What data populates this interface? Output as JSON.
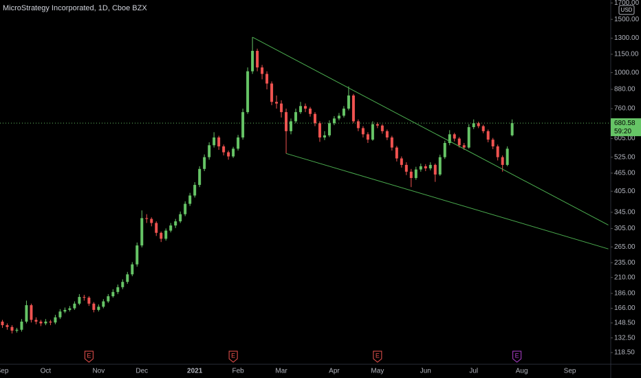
{
  "chart_data": {
    "type": "candlestick",
    "title": "MicroStrategy Incorporated, 1D, Cboe BZX",
    "currency": "USD",
    "countdown": "59:20",
    "categories": [
      "Sep",
      null,
      null,
      null,
      null,
      null,
      null,
      null,
      null,
      "Oct",
      null,
      null,
      null,
      null,
      null,
      null,
      null,
      null,
      null,
      null,
      "Nov",
      null,
      null,
      null,
      null,
      null,
      null,
      null,
      null,
      "Dec",
      null,
      null,
      null,
      null,
      null,
      null,
      null,
      null,
      null,
      null,
      "2021",
      null,
      null,
      null,
      null,
      null,
      null,
      null,
      null,
      "Feb",
      null,
      null,
      null,
      null,
      null,
      null,
      null,
      null,
      "Mar",
      null,
      null,
      null,
      null,
      null,
      null,
      null,
      null,
      null,
      null,
      "Apr",
      null,
      null,
      null,
      null,
      null,
      null,
      null,
      null,
      "May",
      null,
      null,
      null,
      null,
      null,
      null,
      null,
      null,
      null,
      "Jun",
      null,
      null,
      null,
      null,
      null,
      null,
      null,
      null,
      null,
      "Jul",
      null,
      null,
      null,
      null,
      null,
      null,
      null,
      null,
      null,
      "Aug",
      null,
      null,
      null,
      null,
      null,
      null,
      null,
      null,
      null,
      "Sep",
      null,
      null,
      null,
      null,
      null,
      null,
      null,
      null
    ],
    "open": [
      150,
      146,
      144,
      140,
      141,
      150,
      170,
      152,
      150,
      148,
      150,
      149,
      155,
      162,
      164,
      166,
      172,
      181,
      180,
      172,
      164,
      168,
      175,
      182,
      188,
      195,
      203,
      215,
      232,
      268,
      330,
      328,
      318,
      295,
      282,
      300,
      312,
      322,
      340,
      368,
      392,
      425,
      480,
      525,
      575,
      610,
      570,
      545,
      528,
      560,
      610,
      740,
      1010,
      1180,
      1040,
      990,
      920,
      800,
      790,
      740,
      640,
      690,
      740,
      775,
      760,
      730,
      680,
      610,
      620,
      680,
      705,
      720,
      760,
      840,
      690,
      655,
      625,
      600,
      675,
      668,
      640,
      610,
      565,
      520,
      495,
      470,
      448,
      478,
      490,
      482,
      495,
      460,
      525,
      585,
      625,
      605,
      575,
      565,
      660,
      680,
      665,
      640,
      600,
      570,
      525,
      495,
      620,
      null,
      null,
      null,
      null,
      null,
      null,
      null,
      null,
      null,
      null,
      null,
      null,
      null,
      null,
      null,
      null,
      null,
      null,
      null,
      null
    ],
    "high": [
      152,
      148,
      146,
      143,
      153,
      176,
      172,
      155,
      152,
      153,
      152,
      158,
      165,
      167,
      169,
      175,
      185,
      184,
      182,
      174,
      171,
      178,
      185,
      192,
      199,
      207,
      219,
      236,
      274,
      350,
      340,
      332,
      322,
      298,
      305,
      318,
      328,
      347,
      375,
      400,
      434,
      490,
      536,
      588,
      635,
      618,
      578,
      552,
      568,
      622,
      760,
      1040,
      1310,
      1200,
      1060,
      1010,
      935,
      840,
      810,
      760,
      705,
      760,
      800,
      790,
      770,
      740,
      690,
      640,
      695,
      718,
      735,
      775,
      900,
      850,
      700,
      665,
      635,
      690,
      685,
      675,
      648,
      618,
      572,
      528,
      505,
      480,
      488,
      500,
      498,
      505,
      500,
      535,
      595,
      645,
      632,
      612,
      585,
      675,
      700,
      688,
      672,
      648,
      608,
      578,
      532,
      570,
      700,
      null,
      null,
      null,
      null,
      null,
      null,
      null,
      null,
      null,
      null,
      null,
      null,
      null,
      null,
      null,
      null,
      null,
      null,
      null,
      null
    ],
    "low": [
      143,
      141,
      137,
      138,
      139,
      148,
      149,
      147,
      145,
      146,
      146,
      147,
      153,
      160,
      162,
      164,
      170,
      176,
      169,
      161,
      162,
      166,
      173,
      180,
      185,
      192,
      200,
      212,
      228,
      264,
      318,
      310,
      288,
      275,
      278,
      296,
      306,
      318,
      335,
      362,
      386,
      418,
      472,
      515,
      565,
      555,
      532,
      515,
      522,
      552,
      600,
      730,
      990,
      1010,
      950,
      880,
      780,
      760,
      710,
      540,
      625,
      680,
      730,
      740,
      715,
      665,
      590,
      598,
      612,
      670,
      695,
      710,
      750,
      680,
      640,
      610,
      585,
      595,
      655,
      628,
      598,
      552,
      508,
      485,
      458,
      418,
      442,
      470,
      472,
      475,
      435,
      455,
      518,
      575,
      592,
      565,
      555,
      560,
      650,
      655,
      630,
      588,
      558,
      512,
      470,
      490,
      615,
      null,
      null,
      null,
      null,
      null,
      null,
      null,
      null,
      null,
      null,
      null,
      null,
      null,
      null,
      null,
      null,
      null,
      null,
      null,
      null
    ],
    "close": [
      146,
      144,
      140,
      141,
      150,
      170,
      152,
      150,
      148,
      150,
      149,
      155,
      162,
      164,
      166,
      172,
      181,
      180,
      172,
      164,
      168,
      175,
      182,
      188,
      195,
      203,
      215,
      232,
      268,
      330,
      328,
      318,
      295,
      282,
      300,
      312,
      322,
      340,
      368,
      392,
      425,
      480,
      525,
      575,
      610,
      570,
      545,
      528,
      560,
      610,
      740,
      1010,
      1180,
      1040,
      990,
      920,
      800,
      790,
      740,
      640,
      690,
      740,
      775,
      760,
      730,
      680,
      610,
      620,
      680,
      705,
      720,
      760,
      840,
      690,
      655,
      625,
      600,
      675,
      668,
      640,
      610,
      565,
      520,
      495,
      470,
      448,
      478,
      490,
      482,
      495,
      460,
      525,
      585,
      625,
      605,
      575,
      565,
      660,
      680,
      665,
      640,
      600,
      570,
      525,
      495,
      560,
      680.58,
      null,
      null,
      null,
      null,
      null,
      null,
      null,
      null,
      null,
      null,
      null,
      null,
      null,
      null,
      null,
      null,
      null,
      null,
      null,
      null
    ],
    "up_color": "#66c466",
    "down_color": "#ef5350",
    "log_scale": true,
    "grid": false,
    "ylim": [
      108.4,
      1738.5
    ],
    "yticks": [
      {
        "value": 1700,
        "label": "1700.00"
      },
      {
        "value": 1500,
        "label": "1500.00"
      },
      {
        "value": 1300,
        "label": "1300.00"
      },
      {
        "value": 1150,
        "label": "1150.00"
      },
      {
        "value": 1000,
        "label": "1000.00"
      },
      {
        "value": 880,
        "label": "880.00"
      },
      {
        "value": 760,
        "label": "760.00"
      },
      {
        "value": 605,
        "label": "605.00"
      },
      {
        "value": 525,
        "label": "525.00"
      },
      {
        "value": 465,
        "label": "465.00"
      },
      {
        "value": 405,
        "label": "405.00"
      },
      {
        "value": 345,
        "label": "345.00"
      },
      {
        "value": 305,
        "label": "305.00"
      },
      {
        "value": 265,
        "label": "265.00"
      },
      {
        "value": 235,
        "label": "235.00"
      },
      {
        "value": 210,
        "label": "210.00"
      },
      {
        "value": 186,
        "label": "186.00"
      },
      {
        "value": 166,
        "label": "166.00"
      },
      {
        "value": 148.5,
        "label": "148.50"
      },
      {
        "value": 132.5,
        "label": "132.50"
      },
      {
        "value": 118.5,
        "label": "118.50"
      }
    ],
    "trendlines": [
      {
        "color": "#4caf50",
        "start": [
          52,
          1310
        ],
        "end": [
          126,
          313
        ]
      },
      {
        "color": "#4caf50",
        "start": [
          59,
          540
        ],
        "end": [
          126,
          261
        ]
      }
    ],
    "events": [
      {
        "label": "E",
        "index": 18,
        "color": "#ef5350"
      },
      {
        "label": "E",
        "index": 48,
        "color": "#ef5350"
      },
      {
        "label": "E",
        "index": 78,
        "color": "#ef5350"
      },
      {
        "label": "E",
        "index": 107,
        "color": "#b040d0"
      }
    ]
  }
}
